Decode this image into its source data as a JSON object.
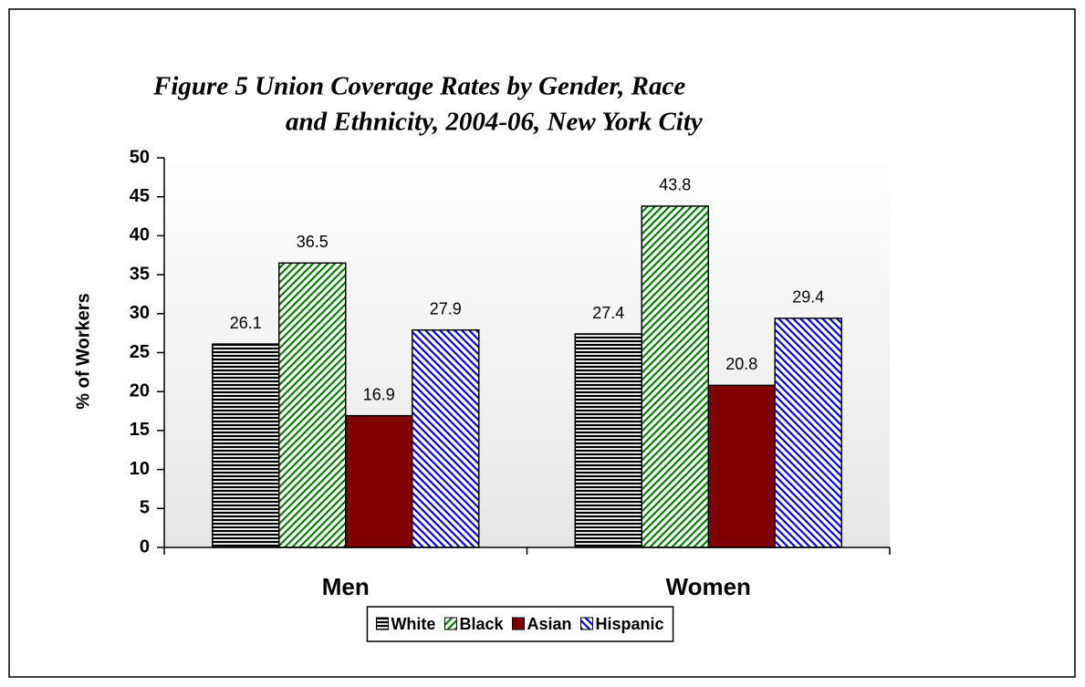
{
  "chart_data": {
    "type": "bar",
    "title": [
      "Figure 5  Union Coverage Rates by Gender, Race",
      "and Ethnicity, 2004-06, New York City"
    ],
    "ylabel": "% of Workers",
    "categories": [
      "Men",
      "Women"
    ],
    "series": [
      {
        "name": "White",
        "color": "#000000",
        "pattern": "horizontal",
        "values": [
          26.1,
          27.4
        ]
      },
      {
        "name": "Black",
        "color": "#008000",
        "pattern": "diagonal-up",
        "values": [
          36.5,
          43.8
        ]
      },
      {
        "name": "Asian",
        "color": "#800000",
        "pattern": "solid",
        "values": [
          16.9,
          20.8
        ]
      },
      {
        "name": "Hispanic",
        "color": "#0000ff",
        "pattern": "diagonal-down",
        "values": [
          27.9,
          29.4
        ]
      }
    ],
    "ylim": [
      0,
      50
    ],
    "yticks": [
      0,
      5,
      10,
      15,
      20,
      25,
      30,
      35,
      40,
      45,
      50
    ],
    "legend": "bottom"
  }
}
